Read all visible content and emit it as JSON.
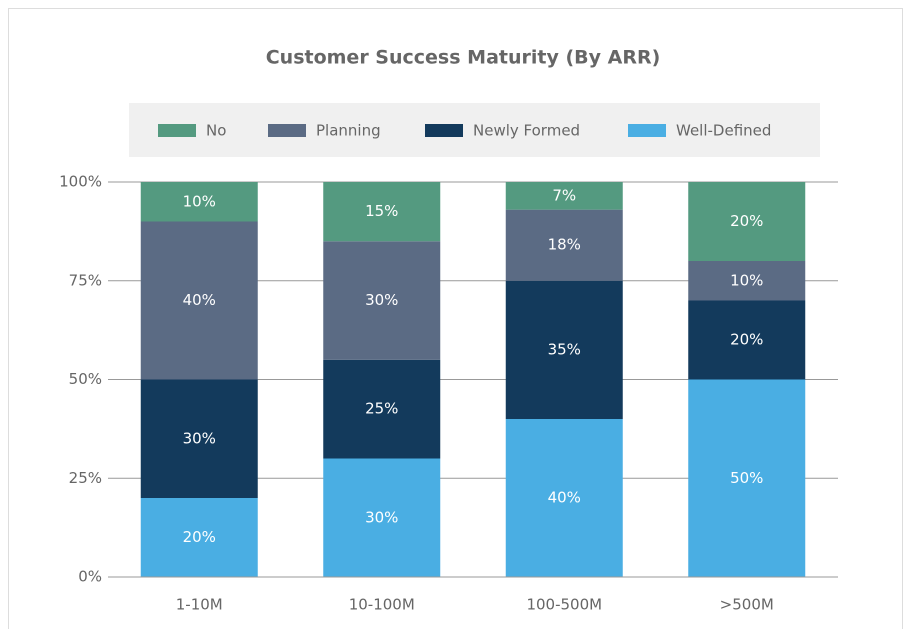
{
  "chart_data": {
    "type": "stacked_bar",
    "title": "Customer Success Maturity (By ARR)",
    "categories": [
      "1-10M",
      "10-100M",
      "100-500M",
      ">500M"
    ],
    "series": [
      {
        "name": "No",
        "color": "#549a80",
        "values": [
          10,
          15,
          7,
          20
        ],
        "value_labels": [
          "10%",
          "15%",
          "7%",
          "20%"
        ]
      },
      {
        "name": "Planning",
        "color": "#5b6b84",
        "values": [
          40,
          30,
          18,
          10
        ],
        "value_labels": [
          "40%",
          "30%",
          "18%",
          "10%"
        ]
      },
      {
        "name": "Newly Formed",
        "color": "#133a5c",
        "values": [
          30,
          25,
          35,
          20
        ],
        "value_labels": [
          "30%",
          "25%",
          "35%",
          "20%"
        ]
      },
      {
        "name": "Well-Defined",
        "color": "#4aaee3",
        "values": [
          20,
          30,
          40,
          50
        ],
        "value_labels": [
          "20%",
          "30%",
          "40%",
          "50%"
        ]
      }
    ],
    "ylim": [
      0,
      100
    ],
    "yticks": [
      {
        "value": 0,
        "label": "0%"
      },
      {
        "value": 25,
        "label": "25%"
      },
      {
        "value": 50,
        "label": "50%"
      },
      {
        "value": 75,
        "label": "75%"
      },
      {
        "value": 100,
        "label": "100%"
      }
    ],
    "grid": true,
    "legend": "top"
  }
}
